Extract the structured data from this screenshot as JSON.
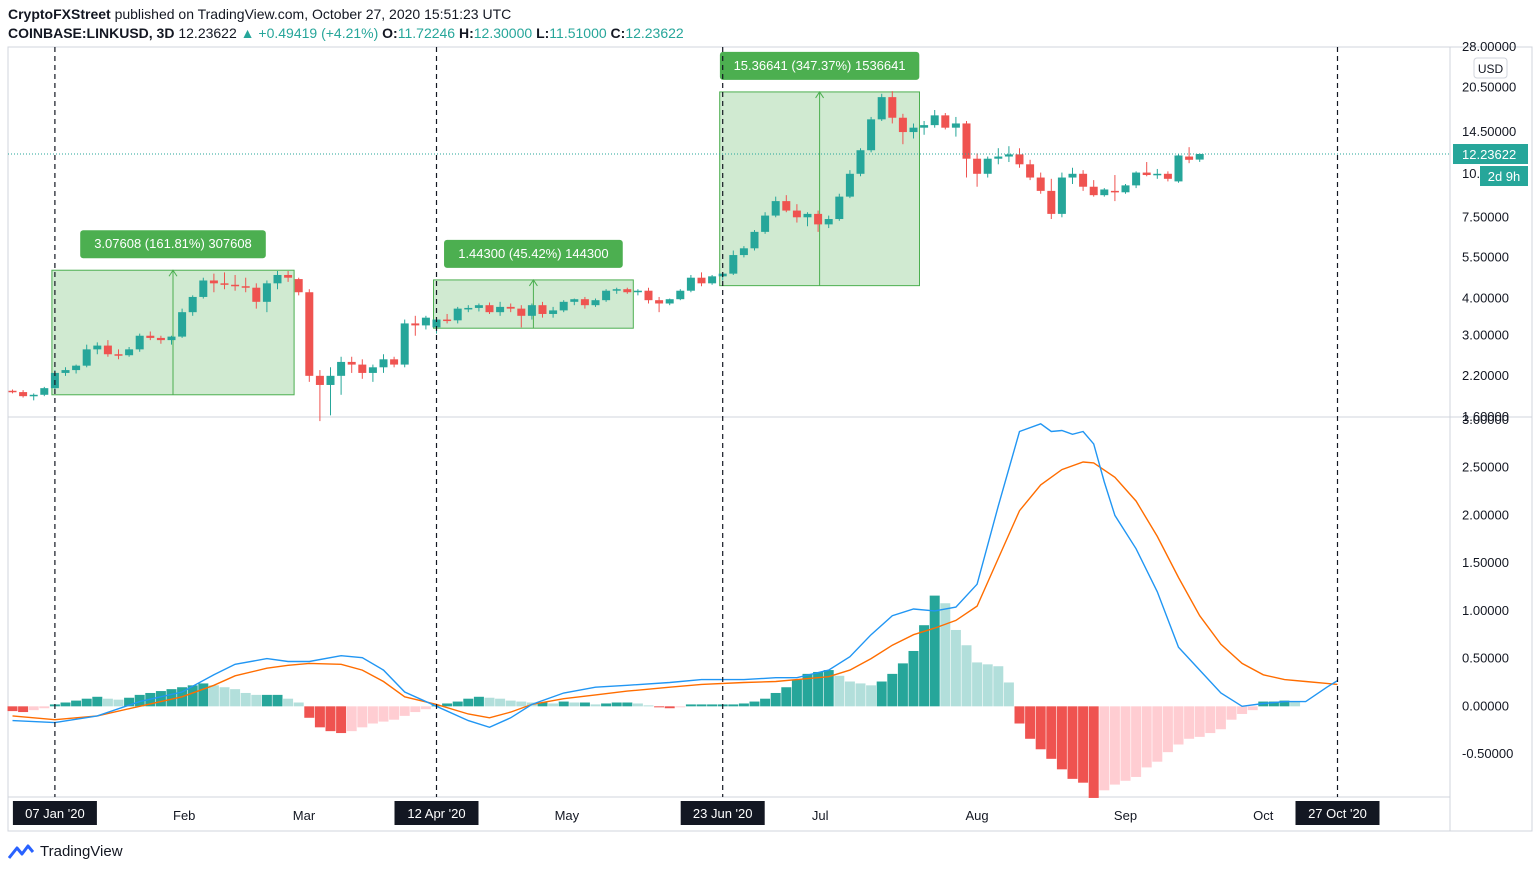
{
  "header": {
    "publisher": "CryptoFXStreet",
    "published_text": "published on TradingView.com, October 27, 2020 15:51:23 UTC",
    "symbol": "COINBASE:LINKUSD, 3D",
    "last": "12.23622",
    "change": "▲ +0.49419 (+4.21%)",
    "o_label": "O:",
    "o_val": "11.72246",
    "h_label": "H:",
    "h_val": "12.30000",
    "l_label": "L:",
    "l_val": "11.51000",
    "c_label": "C:",
    "c_val": "12.23622"
  },
  "footer": {
    "brand": "TradingView"
  },
  "colors": {
    "up": "#26a69a",
    "down": "#ef5350",
    "hist_up_strong": "#26a69a",
    "hist_up_weak": "#b2dfdb",
    "hist_down_strong": "#ef5350",
    "hist_down_weak": "#ffcdd2",
    "macd": "#2196f3",
    "signal": "#ff6d00",
    "range_fill": "#c8e6c9",
    "range_border": "#4caf50",
    "label_bg": "#4caf50"
  },
  "chart_data": {
    "type": "candlestick",
    "price_axis": {
      "unit": "USD",
      "scale": "log",
      "ticks": [
        "28.00000",
        "20.50000",
        "14.50000",
        "10.50000",
        "7.50000",
        "5.50000",
        "4.00000",
        "3.00000",
        "2.20000",
        "1.60000"
      ],
      "current_price": "12.23622",
      "countdown": "2d 9h"
    },
    "macd_axis": {
      "ticks": [
        "3.00000",
        "2.50000",
        "2.00000",
        "1.50000",
        "1.00000",
        "0.50000",
        "0.00000",
        "-0.50000"
      ],
      "ylim": [
        -0.95,
        3.0
      ]
    },
    "time_axis": {
      "labels": [
        "2",
        "Feb",
        "Mar",
        "Apr",
        "May",
        "Jun",
        "Jul",
        "Aug",
        "Sep",
        "Oct"
      ],
      "highlighted": [
        "07 Jan '20",
        "12 Apr '20",
        "23 Jun '20",
        "27 Oct '20"
      ]
    },
    "ohlc": [
      [
        1.96,
        1.98,
        1.92,
        1.94
      ],
      [
        1.94,
        1.97,
        1.86,
        1.88
      ],
      [
        1.88,
        1.92,
        1.82,
        1.9
      ],
      [
        1.9,
        2.02,
        1.88,
        2.0
      ],
      [
        2.0,
        2.3,
        1.98,
        2.25
      ],
      [
        2.25,
        2.35,
        2.2,
        2.3
      ],
      [
        2.3,
        2.4,
        2.24,
        2.38
      ],
      [
        2.38,
        2.8,
        2.35,
        2.7
      ],
      [
        2.7,
        2.85,
        2.6,
        2.78
      ],
      [
        2.78,
        2.9,
        2.55,
        2.6
      ],
      [
        2.6,
        2.7,
        2.5,
        2.58
      ],
      [
        2.58,
        2.75,
        2.55,
        2.7
      ],
      [
        2.7,
        3.05,
        2.65,
        3.0
      ],
      [
        3.0,
        3.1,
        2.9,
        2.95
      ],
      [
        2.95,
        3.0,
        2.82,
        2.9
      ],
      [
        2.9,
        3.0,
        2.8,
        2.98
      ],
      [
        2.98,
        3.7,
        2.95,
        3.6
      ],
      [
        3.6,
        4.1,
        3.5,
        4.05
      ],
      [
        4.05,
        4.7,
        4.0,
        4.6
      ],
      [
        4.6,
        4.85,
        4.2,
        4.5
      ],
      [
        4.5,
        4.9,
        4.3,
        4.45
      ],
      [
        4.45,
        4.8,
        4.25,
        4.4
      ],
      [
        4.4,
        4.7,
        4.2,
        4.35
      ],
      [
        4.35,
        4.5,
        3.7,
        3.9
      ],
      [
        3.9,
        4.6,
        3.6,
        4.5
      ],
      [
        4.5,
        4.95,
        4.3,
        4.8
      ],
      [
        4.8,
        4.95,
        4.55,
        4.7
      ],
      [
        4.65,
        4.7,
        4.1,
        4.2
      ],
      [
        4.2,
        4.3,
        2.1,
        2.2
      ],
      [
        2.2,
        2.3,
        1.55,
        2.05
      ],
      [
        2.05,
        2.35,
        1.62,
        2.2
      ],
      [
        2.2,
        2.55,
        1.9,
        2.45
      ],
      [
        2.45,
        2.55,
        2.25,
        2.4
      ],
      [
        2.4,
        2.5,
        2.15,
        2.25
      ],
      [
        2.25,
        2.4,
        2.1,
        2.35
      ],
      [
        2.35,
        2.6,
        2.25,
        2.5
      ],
      [
        2.5,
        2.55,
        2.35,
        2.4
      ],
      [
        2.4,
        3.4,
        2.35,
        3.3
      ],
      [
        3.3,
        3.5,
        3.0,
        3.25
      ],
      [
        3.25,
        3.5,
        3.15,
        3.45
      ],
      [
        3.2,
        3.45,
        3.05,
        3.4
      ],
      [
        3.4,
        3.55,
        3.3,
        3.38
      ],
      [
        3.38,
        3.75,
        3.3,
        3.7
      ],
      [
        3.7,
        3.8,
        3.6,
        3.72
      ],
      [
        3.72,
        3.85,
        3.62,
        3.8
      ],
      [
        3.8,
        3.88,
        3.55,
        3.6
      ],
      [
        3.6,
        3.9,
        3.5,
        3.75
      ],
      [
        3.75,
        3.85,
        3.6,
        3.7
      ],
      [
        3.7,
        3.8,
        3.2,
        3.5
      ],
      [
        3.5,
        3.85,
        3.4,
        3.8
      ],
      [
        3.8,
        3.9,
        3.45,
        3.55
      ],
      [
        3.55,
        3.75,
        3.45,
        3.65
      ],
      [
        3.65,
        3.95,
        3.6,
        3.9
      ],
      [
        3.9,
        4.0,
        3.8,
        3.98
      ],
      [
        3.98,
        4.05,
        3.7,
        3.8
      ],
      [
        3.8,
        4.0,
        3.75,
        3.95
      ],
      [
        3.95,
        4.3,
        3.9,
        4.25
      ],
      [
        4.25,
        4.35,
        4.15,
        4.3
      ],
      [
        4.3,
        4.35,
        4.15,
        4.2
      ],
      [
        4.2,
        4.3,
        4.1,
        4.25
      ],
      [
        4.25,
        4.35,
        3.85,
        3.95
      ],
      [
        3.95,
        4.05,
        3.6,
        3.85
      ],
      [
        3.85,
        4.0,
        3.8,
        3.98
      ],
      [
        3.98,
        4.3,
        3.95,
        4.25
      ],
      [
        4.25,
        4.8,
        4.2,
        4.7
      ],
      [
        4.7,
        4.9,
        4.4,
        4.5
      ],
      [
        4.5,
        4.8,
        4.45,
        4.75
      ],
      [
        4.75,
        4.9,
        4.6,
        4.85
      ],
      [
        4.85,
        5.8,
        4.8,
        5.6
      ],
      [
        5.6,
        6.0,
        5.5,
        5.9
      ],
      [
        5.9,
        6.8,
        5.8,
        6.7
      ],
      [
        6.7,
        7.8,
        6.6,
        7.6
      ],
      [
        7.6,
        8.8,
        7.5,
        8.5
      ],
      [
        8.5,
        8.9,
        7.8,
        7.9
      ],
      [
        7.9,
        8.3,
        7.2,
        7.5
      ],
      [
        7.5,
        7.8,
        7.0,
        7.7
      ],
      [
        7.7,
        7.9,
        6.7,
        7.1
      ],
      [
        7.1,
        7.6,
        6.9,
        7.4
      ],
      [
        7.4,
        9.0,
        7.3,
        8.8
      ],
      [
        8.8,
        10.8,
        8.7,
        10.5
      ],
      [
        10.5,
        12.8,
        10.3,
        12.6
      ],
      [
        12.6,
        16.3,
        12.4,
        16.0
      ],
      [
        16.0,
        19.5,
        15.8,
        19.0
      ],
      [
        19.0,
        19.9,
        15.5,
        16.2
      ],
      [
        16.2,
        16.7,
        13.2,
        14.5
      ],
      [
        14.5,
        15.5,
        13.8,
        15.0
      ],
      [
        15.0,
        15.8,
        14.2,
        15.3
      ],
      [
        15.3,
        17.2,
        15.0,
        16.5
      ],
      [
        16.5,
        16.8,
        14.8,
        15.0
      ],
      [
        15.0,
        16.3,
        14.0,
        15.5
      ],
      [
        15.5,
        15.8,
        10.2,
        11.8
      ],
      [
        11.8,
        12.3,
        9.5,
        10.5
      ],
      [
        10.5,
        12.0,
        10.2,
        11.8
      ],
      [
        11.8,
        12.8,
        11.3,
        12.0
      ],
      [
        12.0,
        13.0,
        11.5,
        12.2
      ],
      [
        12.2,
        12.8,
        11.0,
        11.3
      ],
      [
        11.3,
        11.7,
        10.0,
        10.2
      ],
      [
        10.2,
        10.6,
        9.0,
        9.2
      ],
      [
        9.2,
        10.1,
        7.4,
        7.7
      ],
      [
        7.7,
        10.6,
        7.5,
        10.2
      ],
      [
        10.2,
        11.0,
        9.7,
        10.5
      ],
      [
        10.5,
        10.8,
        9.2,
        9.5
      ],
      [
        9.5,
        10.0,
        8.8,
        8.9
      ],
      [
        8.9,
        9.4,
        8.8,
        9.3
      ],
      [
        9.2,
        10.4,
        8.5,
        9.1
      ],
      [
        9.1,
        9.7,
        9.0,
        9.6
      ],
      [
        9.6,
        10.7,
        9.4,
        10.6
      ],
      [
        10.6,
        11.5,
        10.3,
        10.4
      ],
      [
        10.4,
        10.9,
        10.1,
        10.5
      ],
      [
        10.5,
        10.7,
        9.9,
        10.1
      ],
      [
        9.9,
        12.2,
        9.8,
        12.1
      ],
      [
        12.0,
        12.9,
        11.4,
        11.7
      ],
      [
        11.72,
        12.3,
        11.51,
        12.24
      ]
    ],
    "macd_line": [
      [
        0,
        -0.15
      ],
      [
        4,
        -0.17
      ],
      [
        8,
        -0.1
      ],
      [
        12,
        0.05
      ],
      [
        16,
        0.15
      ],
      [
        19,
        0.33
      ],
      [
        21,
        0.44
      ],
      [
        24,
        0.5
      ],
      [
        26,
        0.47
      ],
      [
        28,
        0.47
      ],
      [
        31,
        0.53
      ],
      [
        33,
        0.51
      ],
      [
        35,
        0.38
      ],
      [
        37,
        0.15
      ],
      [
        40,
        0.0
      ],
      [
        43,
        -0.15
      ],
      [
        45,
        -0.22
      ],
      [
        47,
        -0.12
      ],
      [
        49,
        0.02
      ],
      [
        52,
        0.14
      ],
      [
        55,
        0.2
      ],
      [
        58,
        0.22
      ],
      [
        62,
        0.25
      ],
      [
        65,
        0.28
      ],
      [
        69,
        0.28
      ],
      [
        72,
        0.3
      ],
      [
        74,
        0.3
      ],
      [
        77,
        0.38
      ],
      [
        79,
        0.52
      ],
      [
        81,
        0.75
      ],
      [
        83,
        0.95
      ],
      [
        85,
        1.02
      ],
      [
        87,
        1.0
      ],
      [
        89,
        1.04
      ],
      [
        91,
        1.28
      ],
      [
        93,
        2.1
      ],
      [
        95,
        2.88
      ],
      [
        97,
        2.96
      ],
      [
        98,
        2.88
      ],
      [
        99,
        2.89
      ],
      [
        100,
        2.85
      ],
      [
        101,
        2.88
      ],
      [
        102,
        2.75
      ],
      [
        103,
        2.35
      ],
      [
        104,
        2.0
      ],
      [
        106,
        1.65
      ],
      [
        108,
        1.2
      ],
      [
        110,
        0.62
      ],
      [
        112,
        0.38
      ],
      [
        114,
        0.14
      ],
      [
        116,
        0.0
      ],
      [
        118,
        0.03
      ],
      [
        120,
        0.05
      ],
      [
        122,
        0.05
      ],
      [
        124,
        0.2
      ],
      [
        125,
        0.27
      ]
    ],
    "signal_line": [
      [
        0,
        -0.1
      ],
      [
        4,
        -0.14
      ],
      [
        8,
        -0.1
      ],
      [
        12,
        0.0
      ],
      [
        16,
        0.1
      ],
      [
        19,
        0.22
      ],
      [
        21,
        0.32
      ],
      [
        24,
        0.4
      ],
      [
        26,
        0.43
      ],
      [
        28,
        0.45
      ],
      [
        31,
        0.44
      ],
      [
        33,
        0.38
      ],
      [
        35,
        0.26
      ],
      [
        37,
        0.1
      ],
      [
        40,
        0.02
      ],
      [
        43,
        -0.08
      ],
      [
        45,
        -0.12
      ],
      [
        47,
        -0.06
      ],
      [
        49,
        0.02
      ],
      [
        52,
        0.08
      ],
      [
        55,
        0.12
      ],
      [
        58,
        0.16
      ],
      [
        62,
        0.2
      ],
      [
        65,
        0.23
      ],
      [
        69,
        0.25
      ],
      [
        72,
        0.26
      ],
      [
        74,
        0.28
      ],
      [
        77,
        0.31
      ],
      [
        79,
        0.38
      ],
      [
        81,
        0.5
      ],
      [
        83,
        0.64
      ],
      [
        85,
        0.75
      ],
      [
        87,
        0.82
      ],
      [
        89,
        0.9
      ],
      [
        91,
        1.05
      ],
      [
        93,
        1.55
      ],
      [
        95,
        2.05
      ],
      [
        97,
        2.32
      ],
      [
        99,
        2.48
      ],
      [
        101,
        2.56
      ],
      [
        102,
        2.55
      ],
      [
        104,
        2.4
      ],
      [
        106,
        2.15
      ],
      [
        108,
        1.78
      ],
      [
        110,
        1.35
      ],
      [
        112,
        0.95
      ],
      [
        114,
        0.65
      ],
      [
        116,
        0.45
      ],
      [
        118,
        0.33
      ],
      [
        120,
        0.28
      ],
      [
        122,
        0.26
      ],
      [
        124,
        0.24
      ],
      [
        125,
        0.23
      ]
    ],
    "histogram": [
      -0.05,
      -0.06,
      -0.04,
      -0.02,
      0.02,
      0.04,
      0.06,
      0.08,
      0.1,
      0.08,
      0.07,
      0.09,
      0.12,
      0.14,
      0.16,
      0.18,
      0.2,
      0.22,
      0.24,
      0.22,
      0.2,
      0.18,
      0.14,
      0.12,
      0.12,
      0.12,
      0.08,
      0.04,
      -0.12,
      -0.22,
      -0.26,
      -0.28,
      -0.26,
      -0.22,
      -0.18,
      -0.16,
      -0.14,
      -0.1,
      -0.06,
      -0.03,
      0.01,
      0.03,
      0.05,
      0.08,
      0.1,
      0.09,
      0.08,
      0.06,
      0.05,
      0.04,
      0.04,
      0.03,
      0.05,
      0.04,
      0.04,
      0.02,
      0.03,
      0.04,
      0.04,
      0.03,
      0.01,
      -0.01,
      -0.02,
      -0.01,
      0.02,
      0.02,
      0.02,
      0.02,
      0.02,
      0.03,
      0.05,
      0.08,
      0.14,
      0.2,
      0.28,
      0.34,
      0.36,
      0.38,
      0.32,
      0.26,
      0.24,
      0.22,
      0.26,
      0.34,
      0.45,
      0.58,
      0.85,
      1.16,
      1.08,
      0.8,
      0.64,
      0.46,
      0.44,
      0.42,
      0.25,
      -0.18,
      -0.34,
      -0.45,
      -0.55,
      -0.66,
      -0.76,
      -0.8,
      -0.96,
      -0.88,
      -0.82,
      -0.78,
      -0.74,
      -0.64,
      -0.58,
      -0.48,
      -0.4,
      -0.34,
      -0.32,
      -0.28,
      -0.24,
      -0.14,
      -0.08,
      -0.04,
      0.05,
      0.05,
      0.06,
      0.05
    ],
    "measures": [
      {
        "label": "3.07608 (161.81%) 307608",
        "from": 4,
        "to": 26,
        "low": 1.9,
        "high": 4.98
      },
      {
        "label": "1.44300 (45.42%) 144300",
        "from": 40,
        "to": 58,
        "low": 3.18,
        "high": 4.62
      },
      {
        "label": "15.36641 (347.37%) 1536641",
        "from": 67,
        "to": 85,
        "low": 4.42,
        "high": 19.78
      }
    ],
    "markers": [
      4,
      40,
      67,
      125
    ]
  }
}
